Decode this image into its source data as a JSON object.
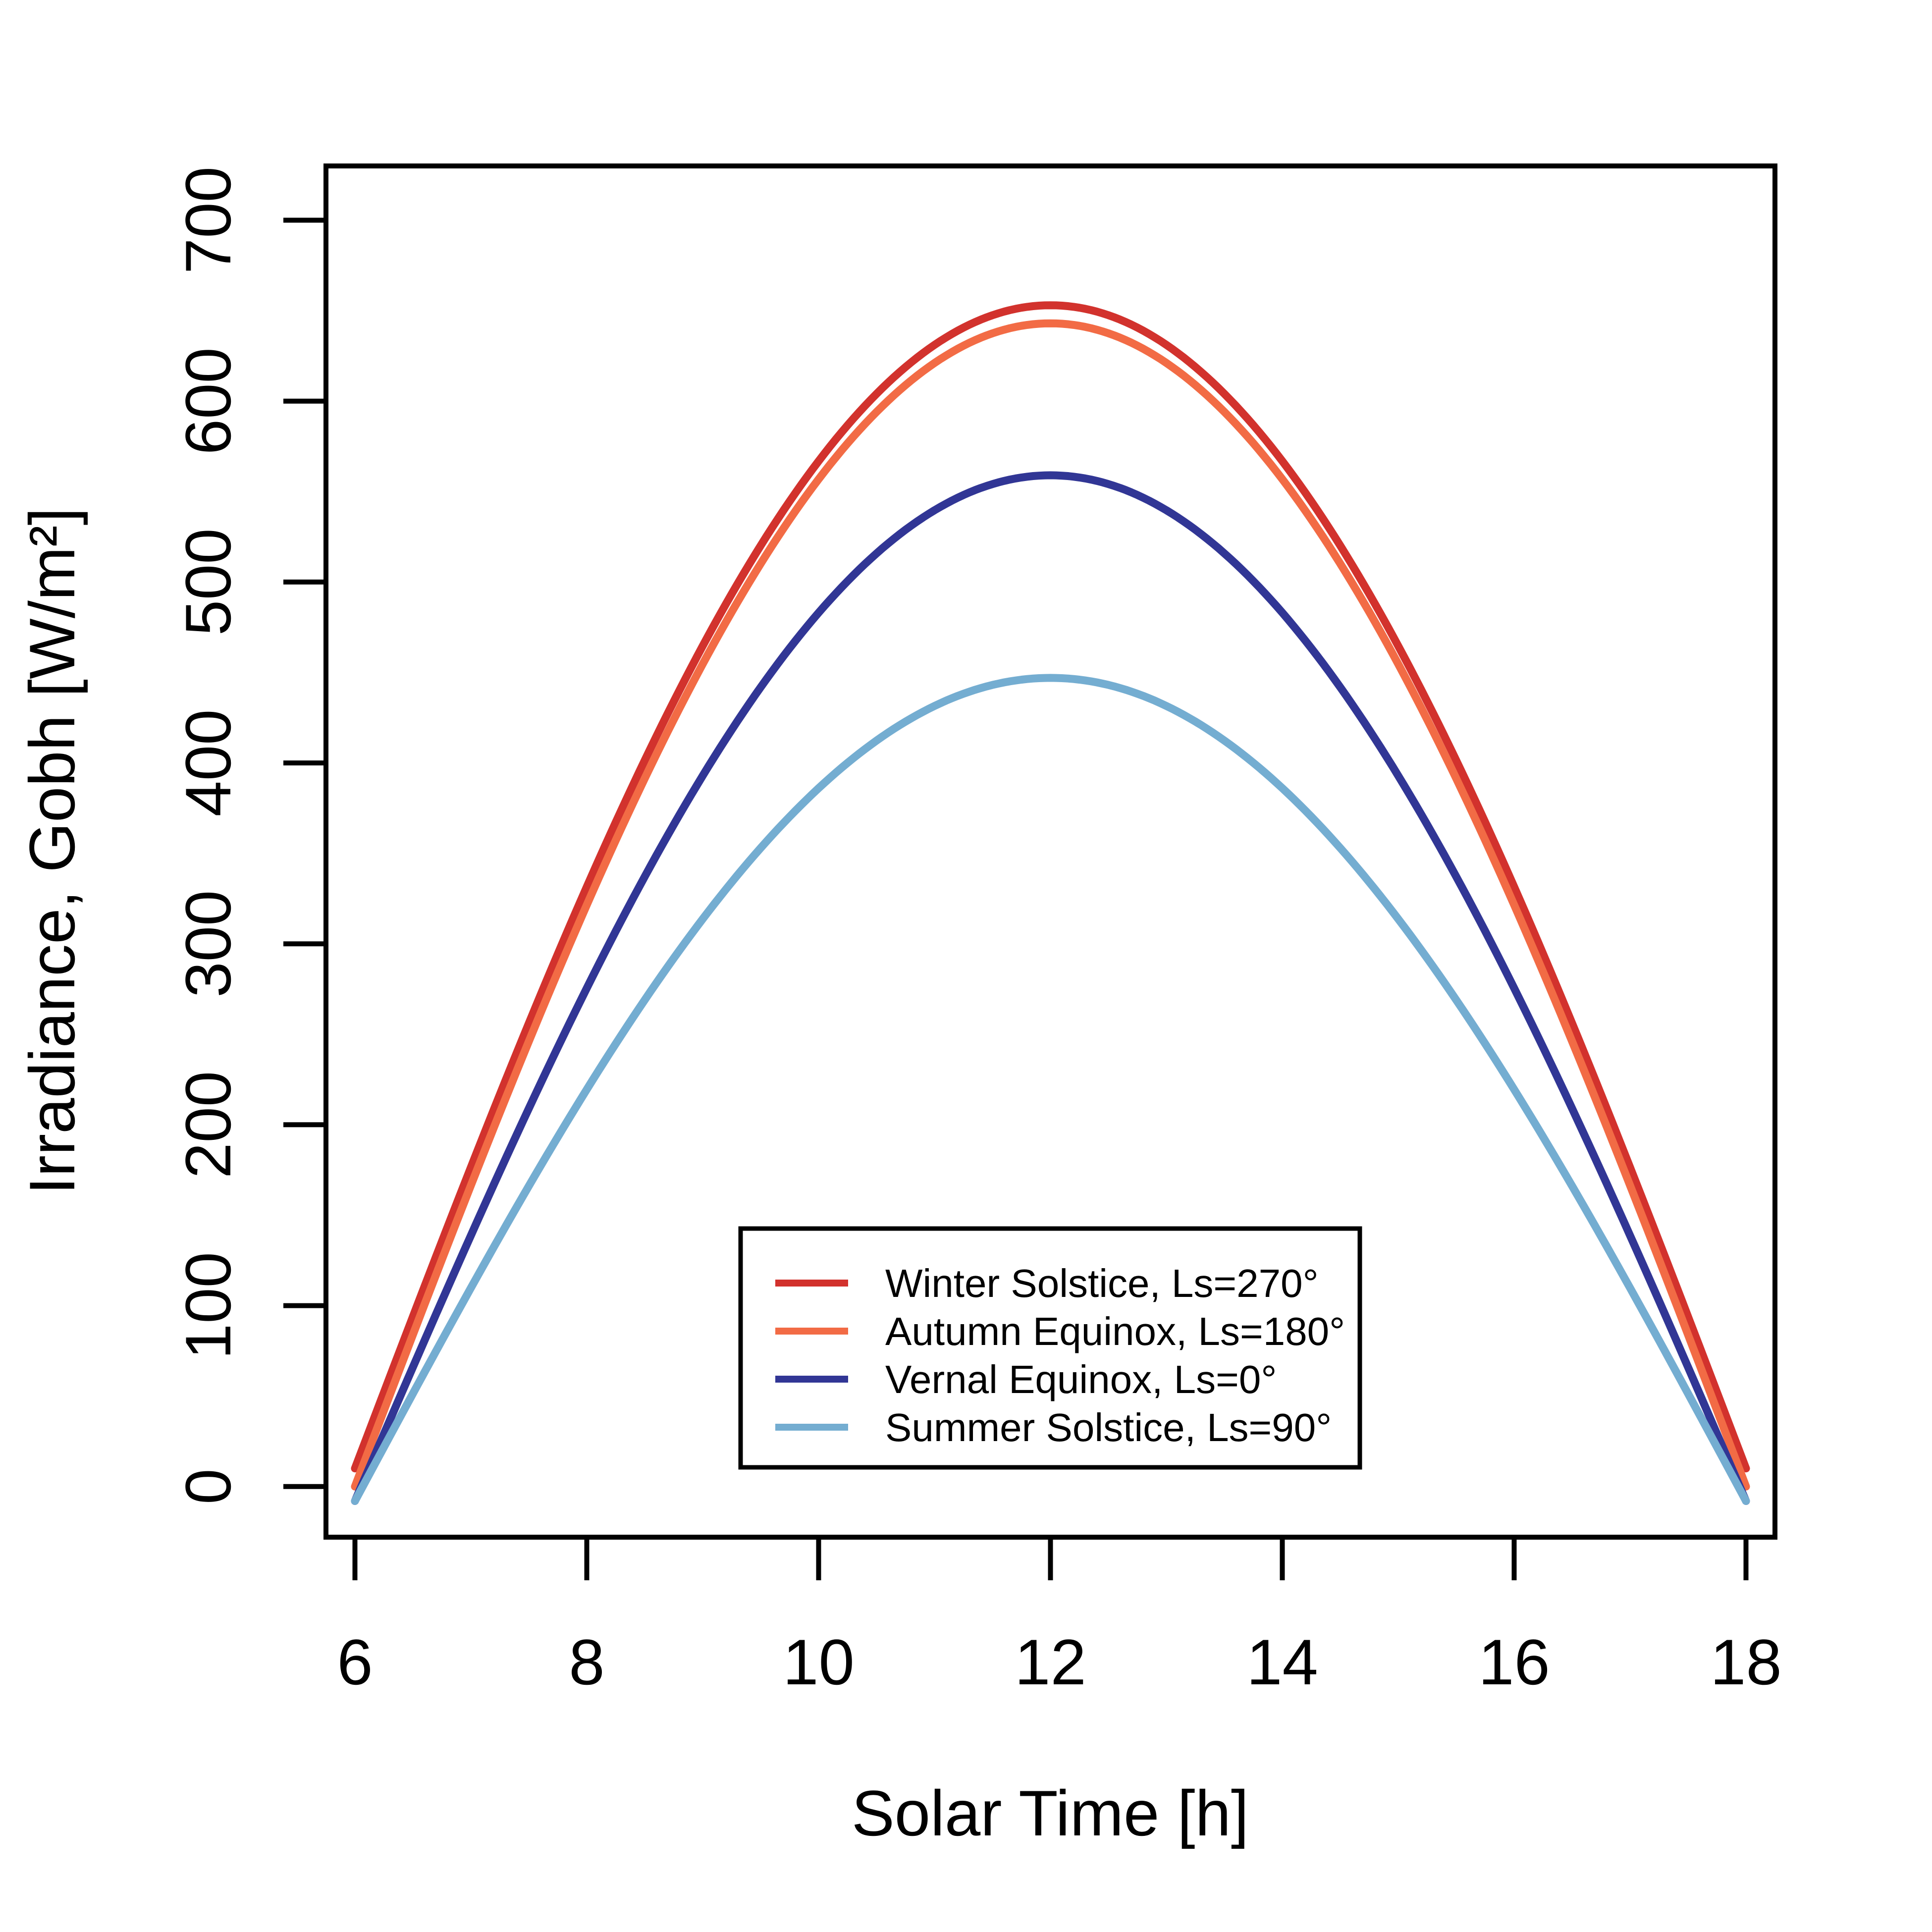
{
  "chart_data": {
    "type": "line",
    "xlabel": "Solar Time [h]",
    "ylabel": "Irradiance, Gobh [W/m²]",
    "xlim": [
      5.75,
      18.25
    ],
    "ylim": [
      -28,
      730
    ],
    "xticks": [
      6,
      8,
      10,
      12,
      14,
      16,
      18
    ],
    "yticks": [
      0,
      100,
      200,
      300,
      400,
      500,
      600,
      700
    ],
    "grid": false,
    "legend_position": "bottom-center",
    "x_range": [
      6,
      18
    ],
    "series": [
      {
        "name": "Winter Solstice, Ls=270°",
        "color": "#d2322d",
        "peak": 653,
        "endpoint": 10
      },
      {
        "name": "Autumn Equinox, Ls=180°",
        "color": "#f26b45",
        "peak": 643,
        "endpoint": 0
      },
      {
        "name": "Vernal Equinox, Ls=0°",
        "color": "#313695",
        "peak": 559,
        "endpoint": -8
      },
      {
        "name": "Summer Solstice, Ls=90°",
        "color": "#74add1",
        "peak": 447,
        "endpoint": -8
      }
    ]
  }
}
